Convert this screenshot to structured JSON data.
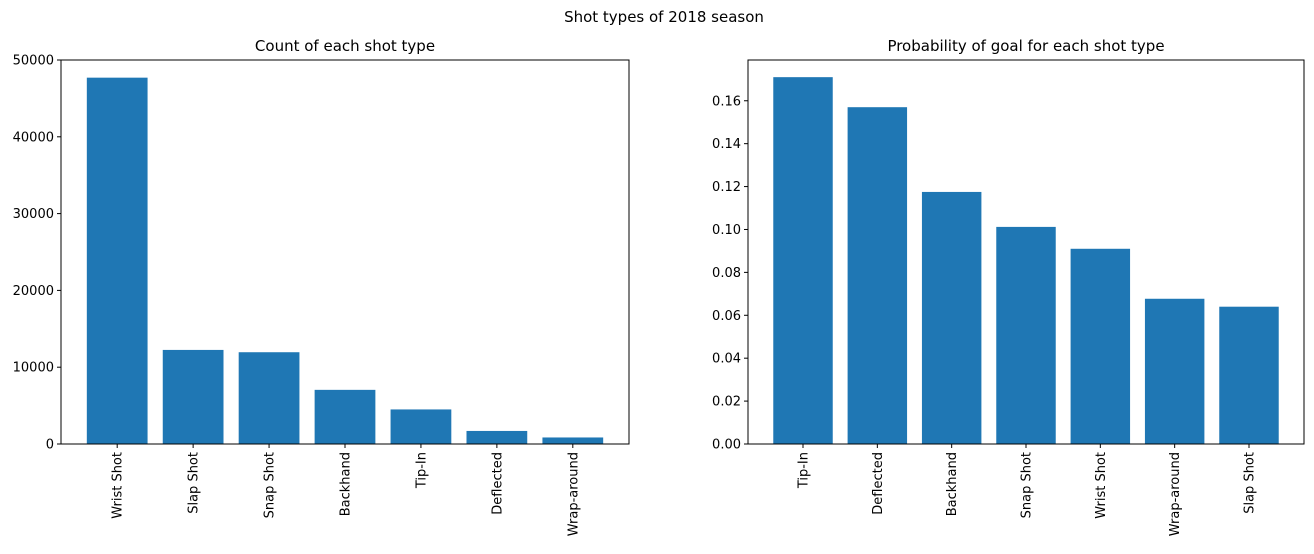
{
  "figure": {
    "suptitle": "Shot types of 2018 season"
  },
  "chart_data": [
    {
      "type": "bar",
      "title": "Count of each shot type",
      "categories": [
        "Wrist Shot",
        "Slap Shot",
        "Snap Shot",
        "Backhand",
        "Tip-In",
        "Deflected",
        "Wrap-around"
      ],
      "values": [
        47700,
        12250,
        11950,
        7050,
        4500,
        1700,
        850
      ],
      "ylim": [
        0,
        50000
      ],
      "yticks": [
        0,
        10000,
        20000,
        30000,
        40000,
        50000
      ],
      "ytick_labels": [
        "0",
        "10000",
        "20000",
        "30000",
        "40000",
        "50000"
      ],
      "xlabel": "",
      "ylabel": "",
      "color": "#1f77b4",
      "grid": false
    },
    {
      "type": "bar",
      "title": "Probability of goal for each shot type",
      "categories": [
        "Tip-In",
        "Deflected",
        "Backhand",
        "Snap Shot",
        "Wrist Shot",
        "Wrap-around",
        "Slap Shot"
      ],
      "values": [
        0.171,
        0.157,
        0.1175,
        0.1012,
        0.091,
        0.0677,
        0.064
      ],
      "ylim": [
        0,
        0.179
      ],
      "yticks": [
        0,
        0.02,
        0.04,
        0.06,
        0.08,
        0.1,
        0.12,
        0.14,
        0.16
      ],
      "ytick_labels": [
        "0.00",
        "0.02",
        "0.04",
        "0.06",
        "0.08",
        "0.10",
        "0.12",
        "0.14",
        "0.16"
      ],
      "xlabel": "",
      "ylabel": "",
      "color": "#1f77b4",
      "grid": false
    }
  ]
}
